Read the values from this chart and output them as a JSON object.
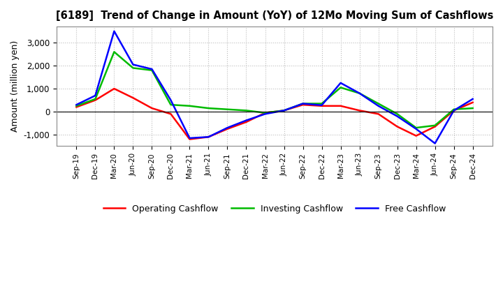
{
  "title": "[6189]  Trend of Change in Amount (YoY) of 12Mo Moving Sum of Cashflows",
  "ylabel": "Amount (million yen)",
  "x_labels": [
    "Sep-19",
    "Dec-19",
    "Mar-20",
    "Jun-20",
    "Sep-20",
    "Dec-20",
    "Mar-21",
    "Jun-21",
    "Sep-21",
    "Dec-21",
    "Mar-22",
    "Jun-22",
    "Sep-22",
    "Dec-22",
    "Mar-23",
    "Jun-23",
    "Sep-23",
    "Dec-23",
    "Mar-24",
    "Jun-24",
    "Sep-24",
    "Dec-24"
  ],
  "operating": [
    200,
    500,
    1000,
    600,
    150,
    -100,
    -1200,
    -1100,
    -750,
    -450,
    -50,
    50,
    300,
    250,
    250,
    50,
    -100,
    -650,
    -1050,
    -650,
    50,
    400
  ],
  "investing": [
    250,
    550,
    2600,
    1900,
    1800,
    300,
    250,
    150,
    100,
    50,
    -50,
    50,
    350,
    350,
    1050,
    800,
    350,
    -100,
    -700,
    -600,
    100,
    150
  ],
  "free": [
    300,
    700,
    3500,
    2050,
    1850,
    500,
    -1150,
    -1100,
    -700,
    -380,
    -100,
    50,
    350,
    280,
    1250,
    800,
    250,
    -200,
    -750,
    -1380,
    50,
    550
  ],
  "operating_color": "#ff0000",
  "investing_color": "#00bb00",
  "free_color": "#0000ff",
  "ylim": [
    -1500,
    3700
  ],
  "yticks": [
    -1000,
    0,
    1000,
    2000,
    3000
  ],
  "grid_color": "#bbbbbb",
  "bg_color": "#ffffff",
  "legend_labels": [
    "Operating Cashflow",
    "Investing Cashflow",
    "Free Cashflow"
  ]
}
